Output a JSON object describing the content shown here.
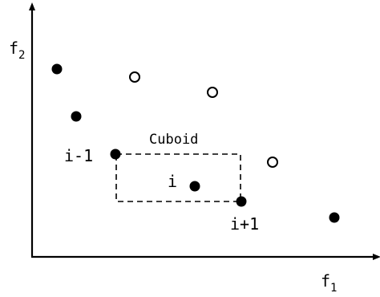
{
  "axes": {
    "y_label_main": "f",
    "y_label_sub": "2",
    "x_label_main": "f",
    "x_label_sub": "1"
  },
  "labels": {
    "cuboid": "Cuboid",
    "prev": "i-1",
    "current": "i",
    "next": "i+1"
  },
  "points": {
    "filled": 6,
    "hollow": 3
  },
  "colors": {
    "ink": "#000000",
    "background": "#ffffff"
  }
}
